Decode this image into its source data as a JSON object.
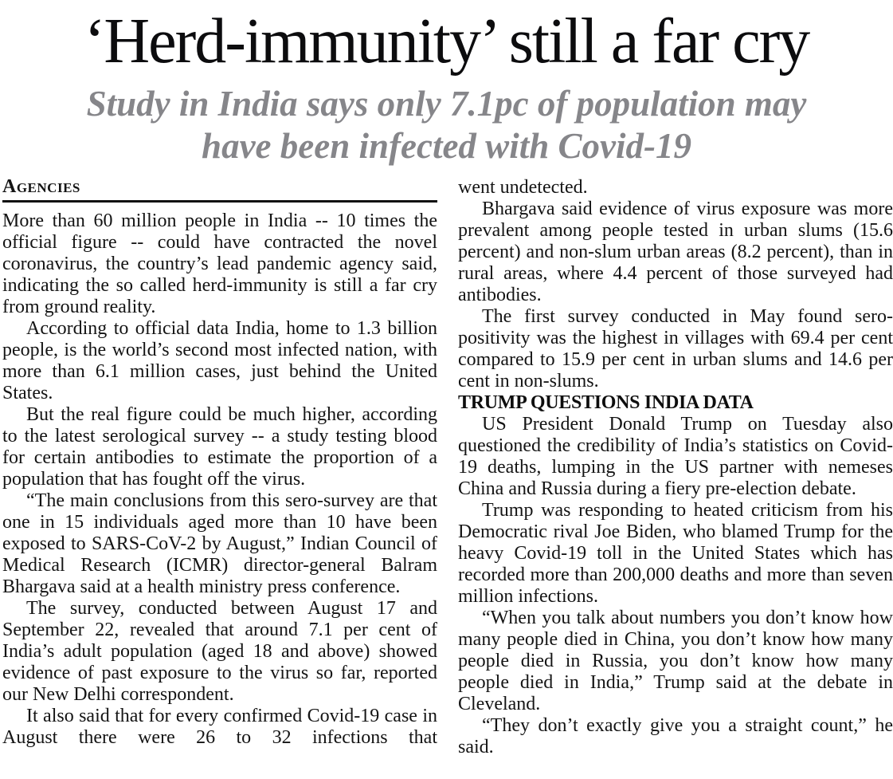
{
  "article": {
    "headline": "‘Herd-immunity’ still a far cry",
    "subtitle_lines": [
      "Study in India says only 7.1pc of population may",
      "have been infected with Covid-19"
    ],
    "byline": "Agencies",
    "left_column": {
      "paragraphs": [
        "More than 60 million people in India -- 10 times the official figure -- could have contracted the novel coronavirus, the country’s lead pandemic agency said, indicating the so called herd-immunity is still a far cry from ground reality.",
        "According to official data India, home to 1.3 billion people, is the world’s second most infected nation, with more than 6.1 million cases, just behind the United States.",
        "But the real figure could be much higher, according to the latest serological survey -- a study testing blood for certain antibodies to estimate the proportion of a population that has fought off the virus.",
        "“The main conclusions from this sero-survey are that one in 15 individuals aged more than 10 have been exposed to SARS-CoV-2 by August,” Indian Council of Medical Research (ICMR) director-general Balram Bhargava said at a health ministry press conference.",
        "The survey, conducted between August 17 and September 22, revealed that around 7.1 per cent of India’s adult population (aged 18 and above) showed evidence of past exposure to the virus so far, reported our New Delhi correspondent.",
        "It also said that for every confirmed Covid-19 case in August there were 26 to 32 infections that"
      ]
    },
    "right_column": {
      "paragraphs": [
        "went undetected.",
        "Bhargava said evidence of virus exposure was more prevalent among people tested in urban slums (15.6 percent) and non-slum urban areas (8.2 percent), than in rural areas, where 4.4 percent of those surveyed had antibodies.",
        "The first survey conducted in May found sero-positivity was the highest in villages with 69.4 per cent compared to 15.9 per cent in urban slums and 14.6 per cent in non-slums.",
        "US President Donald Trump on Tuesday also questioned the credibility of India’s statistics on Covid-19 deaths, lumping in the US partner with nemeses China and Russia during a fiery pre-election debate.",
        "Trump was responding to heated criticism from his Democratic rival Joe Biden, who blamed Trump for the heavy Covid-19 toll in the United States which has recorded more than 200,000 deaths and more than seven million infections.",
        "“When you talk about numbers you don’t know how many people died in China, you don’t know how many people died in Russia, you don’t know how many people died in India,” Trump said at the debate in Cleveland.",
        "“They don’t exactly give you a straight count,” he said."
      ],
      "section_header": "TRUMP QUESTIONS INDIA DATA"
    }
  },
  "colors": {
    "headline": "#0c0c0e",
    "subtitle": "#86868a",
    "body": "#141414",
    "rule": "#111111"
  }
}
